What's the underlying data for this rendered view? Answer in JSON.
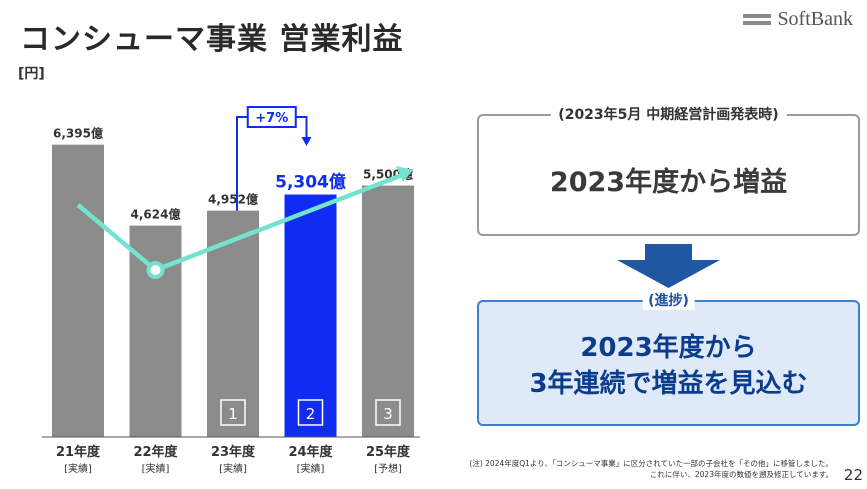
{
  "header": {
    "title": "コンシューマ事業 営業利益",
    "unit": "[円]",
    "logo_text": "SoftBank"
  },
  "chart_data": {
    "type": "bar",
    "categories": [
      "21年度",
      "22年度",
      "23年度",
      "24年度",
      "25年度"
    ],
    "sublabels": [
      "[実績]",
      "[実績]",
      "[実績]",
      "[実績]",
      "[予想]"
    ],
    "values": [
      6395,
      4624,
      4952,
      5304,
      5500
    ],
    "data_labels": [
      "6,395億",
      "4,624億",
      "4,952億",
      "5,304億",
      "5,500億"
    ],
    "highlight_index": 3,
    "bar_markers": [
      "",
      "",
      "1",
      "2",
      "3"
    ],
    "growth_annotation": "+7%",
    "ylim": [
      0,
      7000
    ],
    "colors": {
      "bar": "#8c8c8c",
      "highlight": "#0f2cf0",
      "trend": "#72e3cf",
      "label": "#333333"
    }
  },
  "panel": {
    "top_label": "(2023年5月 中期経営計画発表時)",
    "top_text": "2023年度から増益",
    "bottom_label": "(進捗)",
    "bottom_text_line1": "2023年度から",
    "bottom_text_line2": "3年連続で増益を見込む"
  },
  "footer": {
    "note_line1": "(注) 2024年度Q1より、「コンシューマ事業」に区分されていた一部の子会社を「その他」に移管しました。",
    "note_line2": "これに伴い、2023年度の数値を遡及修正しています。",
    "page_number": "22"
  }
}
